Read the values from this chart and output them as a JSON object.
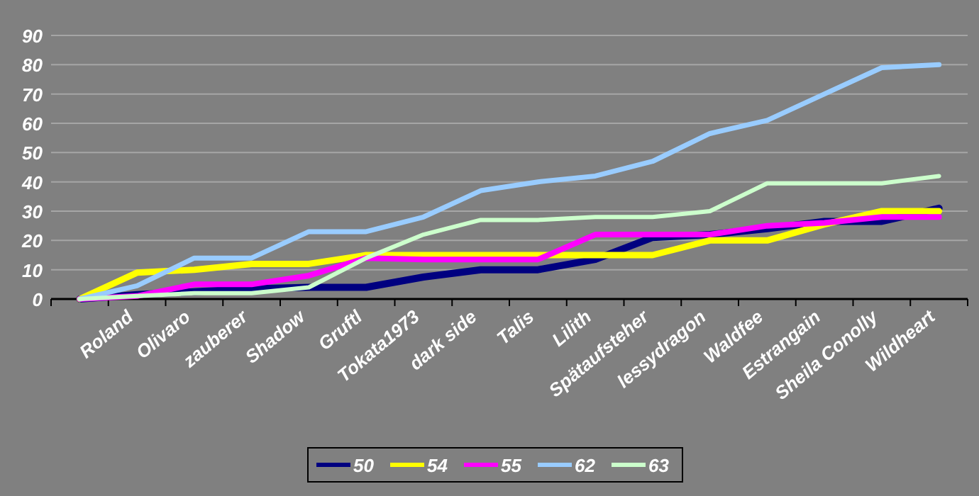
{
  "chart_data": {
    "type": "line",
    "categories": [
      null,
      "Roland",
      "Olivaro",
      "zauberer",
      "Shadow",
      "Gruftl",
      "Tokata1973",
      "dark side",
      "Talis",
      "Lilith",
      "Spätaufsteher",
      "lessydragon",
      "Waldfee",
      "Estrangain",
      "Sheila Conolly",
      "Wildheart"
    ],
    "series": [
      {
        "name": "50",
        "color": "#000080",
        "values": [
          0,
          1.5,
          2.5,
          3.5,
          4,
          4,
          7.5,
          10,
          10,
          13.5,
          21,
          22,
          24,
          26.5,
          26.5,
          31
        ]
      },
      {
        "name": "54",
        "color": "#ffff00",
        "values": [
          0,
          9,
          10,
          12,
          12,
          15,
          15,
          15,
          15,
          15,
          15,
          20,
          20,
          25.5,
          30,
          30
        ]
      },
      {
        "name": "55",
        "color": "#ff00ff",
        "values": [
          0,
          1,
          5,
          5,
          8,
          14,
          13.5,
          13.5,
          13.5,
          22,
          22,
          22,
          25,
          26,
          28,
          28
        ]
      },
      {
        "name": "62",
        "color": "#99ccff",
        "values": [
          0,
          4.5,
          14,
          14,
          23,
          23,
          28,
          37,
          40,
          42,
          47,
          56.5,
          61,
          70,
          79,
          80
        ]
      },
      {
        "name": "63",
        "color": "#ccffcc",
        "values": [
          0,
          1,
          2,
          2,
          4,
          14,
          22,
          27,
          27,
          28,
          28,
          30,
          39.5,
          39.5,
          39.5,
          42
        ]
      }
    ],
    "ylim": [
      0,
      90
    ],
    "yticks": [
      0,
      10,
      20,
      30,
      40,
      50,
      60,
      70,
      80,
      90
    ],
    "grid": "y",
    "legend": "bottom",
    "marker": "none",
    "line_style": "solid"
  }
}
